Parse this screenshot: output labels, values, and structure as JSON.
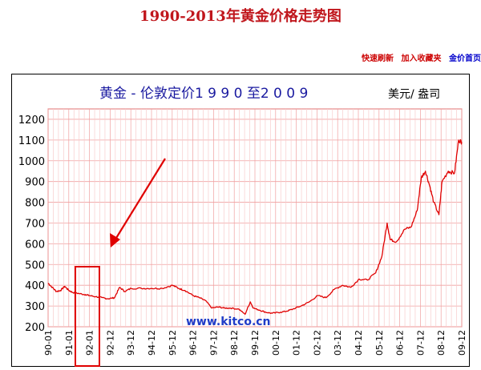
{
  "page_title": "1990-2013年黄金价格走势图",
  "links": {
    "quick_refresh": "快速刷新",
    "add_favorites": "加入收藏夹",
    "gold_price_home": "金价首页"
  },
  "colors": {
    "title_red": "#c0161c",
    "line_red": "#e00000",
    "grid": "#f0a0a0",
    "chart_title_blue": "#1a1aa0",
    "watermark": "#1e3cc8"
  },
  "chart_data": {
    "type": "line",
    "title": "黄金  - 伦敦定价1 9 9 0 至2 0 0 9",
    "unit": "美元/ 盎司",
    "watermark": "www.kitco.cn",
    "ylim": [
      200,
      1250
    ],
    "yticks": [
      200,
      300,
      400,
      500,
      600,
      700,
      800,
      900,
      1000,
      1100,
      1200
    ],
    "xlim": [
      1990.0,
      2009.95
    ],
    "xticks": [
      "90-01",
      "91-01",
      "92-01",
      "92-12",
      "93-12",
      "94-12",
      "95-12",
      "96-12",
      "97-12",
      "98-12",
      "99-12",
      "00-12",
      "01-12",
      "02-12",
      "03-12",
      "04-12",
      "05-12",
      "06-12",
      "07-12",
      "08-12",
      "09-12"
    ],
    "grid": true,
    "annotations": [
      "arrow pointing to 1992 low region",
      "highlight box 1991-1992"
    ],
    "series": [
      {
        "x": [
          1990.0,
          1990.2,
          1990.4,
          1990.6,
          1990.8,
          1991.0,
          1991.2,
          1991.5,
          1991.8,
          1992.0,
          1992.3,
          1992.6,
          1992.9,
          1993.2,
          1993.45,
          1993.7,
          1994.0,
          1994.5,
          1995.0,
          1995.5,
          1996.0,
          1996.3,
          1996.6,
          1997.0,
          1997.3,
          1997.6,
          1997.9,
          1998.2,
          1998.5,
          1998.8,
          1999.2,
          1999.5,
          1999.75,
          1999.9,
          2000.2,
          2000.5,
          2000.8,
          2001.2,
          2001.5,
          2001.8,
          2002.2,
          2002.6,
          2003.0,
          2003.4,
          2003.8,
          2004.2,
          2004.6,
          2005.0,
          2005.4,
          2005.8,
          2006.1,
          2006.35,
          2006.5,
          2006.8,
          2007.2,
          2007.5,
          2007.8,
          2008.0,
          2008.2,
          2008.4,
          2008.6,
          2008.85,
          2009.0,
          2009.3,
          2009.6,
          2009.8,
          2009.95
        ],
        "y": [
          410,
          390,
          370,
          375,
          395,
          375,
          365,
          360,
          355,
          350,
          345,
          340,
          335,
          340,
          390,
          370,
          385,
          385,
          385,
          385,
          400,
          385,
          375,
          350,
          340,
          325,
          290,
          295,
          290,
          290,
          285,
          260,
          320,
          290,
          280,
          270,
          265,
          270,
          275,
          285,
          300,
          320,
          350,
          340,
          380,
          400,
          390,
          430,
          425,
          460,
          540,
          700,
          620,
          610,
          670,
          680,
          760,
          920,
          950,
          880,
          800,
          740,
          900,
          950,
          940,
          1100,
          1090
        ]
      }
    ]
  }
}
